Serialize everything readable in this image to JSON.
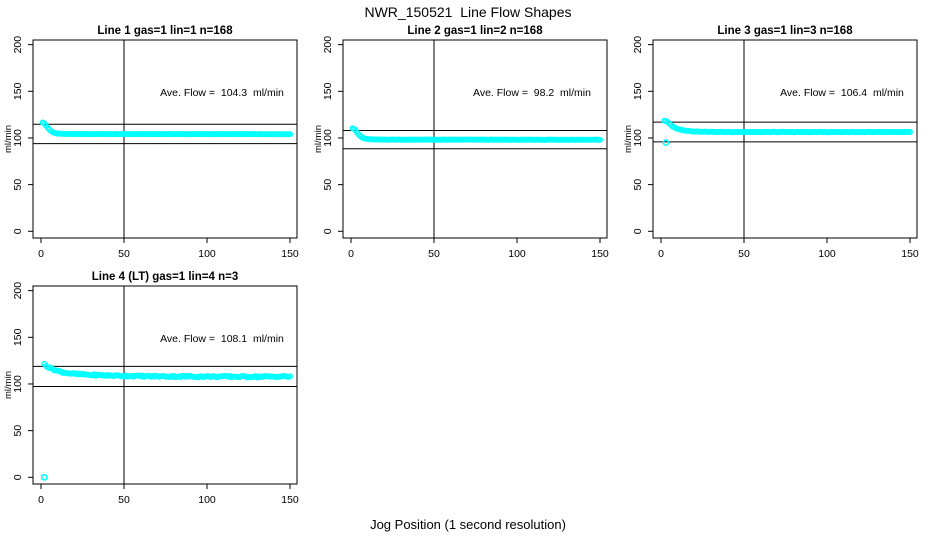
{
  "page": {
    "title": "NWR_150521  Line Flow Shapes",
    "xlabel": "Jog Position (1 second resolution)"
  },
  "chart_data": {
    "type": "scatter",
    "suptitle": "NWR_150521  Line Flow Shapes",
    "xlabel": "Jog Position (1 second resolution)",
    "ylabel": "ml/min",
    "xlim": [
      0,
      150
    ],
    "ylim": [
      0,
      200
    ],
    "xticks": [
      0,
      50,
      100,
      150
    ],
    "yticks": [
      0,
      50,
      100,
      150,
      200
    ],
    "vline_x": 50,
    "point_color": "#00ffff",
    "axis_color": "#000000",
    "grid": "off",
    "panels": [
      {
        "title": "Line 1 gas=1 lin=1 n=168",
        "gas": 1,
        "lin": 1,
        "n": 168,
        "ave_flow": 104.3,
        "ave_flow_label": "Ave. Flow =  104.3  ml/min",
        "hline_upper": 114.7,
        "hline_lower": 93.9,
        "profile": [
          [
            1,
            116.5
          ],
          [
            2,
            115.5
          ],
          [
            3,
            113.5
          ],
          [
            4,
            111.0
          ],
          [
            5,
            109.0
          ],
          [
            6,
            107.5
          ],
          [
            7,
            106.3
          ],
          [
            8,
            105.5
          ],
          [
            10,
            104.8
          ],
          [
            13,
            104.4
          ],
          [
            18,
            104.2
          ],
          [
            150,
            104.1
          ]
        ],
        "outliers": [],
        "jitter": 0.15
      },
      {
        "title": "Line 2 gas=1 lin=2 n=168",
        "gas": 1,
        "lin": 2,
        "n": 168,
        "ave_flow": 98.2,
        "ave_flow_label": "Ave. Flow =  98.2  ml/min",
        "hline_upper": 108.0,
        "hline_lower": 88.4,
        "profile": [
          [
            1,
            110.5
          ],
          [
            2,
            109.5
          ],
          [
            3,
            107.5
          ],
          [
            4,
            105.0
          ],
          [
            5,
            103.0
          ],
          [
            6,
            101.5
          ],
          [
            7,
            100.3
          ],
          [
            8,
            99.5
          ],
          [
            10,
            98.8
          ],
          [
            13,
            98.4
          ],
          [
            18,
            98.2
          ],
          [
            150,
            98.1
          ]
        ],
        "outliers": [],
        "jitter": 0.15
      },
      {
        "title": "Line 3 gas=1 lin=3 n=168",
        "gas": 1,
        "lin": 3,
        "n": 168,
        "ave_flow": 106.4,
        "ave_flow_label": "Ave. Flow =  106.4  ml/min",
        "hline_upper": 117.0,
        "hline_lower": 95.8,
        "profile": [
          [
            2,
            118.5
          ],
          [
            3,
            118.0
          ],
          [
            4,
            117.0
          ],
          [
            5,
            115.5
          ],
          [
            6,
            114.0
          ],
          [
            7,
            112.5
          ],
          [
            8,
            111.3
          ],
          [
            10,
            109.8
          ],
          [
            12,
            108.8
          ],
          [
            15,
            107.8
          ],
          [
            20,
            107.0
          ],
          [
            28,
            106.6
          ],
          [
            40,
            106.4
          ],
          [
            150,
            106.3
          ]
        ],
        "outliers": [
          [
            3,
            95
          ]
        ],
        "jitter": 0.2
      },
      {
        "title": "Line 4 (LT) gas=1 lin=4 n=3",
        "gas": 1,
        "lin": 4,
        "n": 3,
        "ave_flow": 108.1,
        "ave_flow_label": "Ave. Flow =  108.1  ml/min",
        "hline_upper": 118.9,
        "hline_lower": 97.3,
        "profile": [
          [
            2,
            121.5
          ],
          [
            3,
            120.0
          ],
          [
            4,
            118.5
          ],
          [
            5,
            117.5
          ],
          [
            7,
            116.0
          ],
          [
            9,
            114.5
          ],
          [
            12,
            113.0
          ],
          [
            15,
            112.0
          ],
          [
            18,
            111.2
          ],
          [
            22,
            110.5
          ],
          [
            27,
            110.0
          ],
          [
            32,
            109.6
          ],
          [
            38,
            109.2
          ],
          [
            45,
            108.9
          ],
          [
            52,
            108.6
          ],
          [
            60,
            108.4
          ],
          [
            70,
            108.2
          ],
          [
            80,
            108.1
          ],
          [
            90,
            108.0
          ],
          [
            100,
            107.9
          ],
          [
            110,
            107.9
          ],
          [
            120,
            107.8
          ],
          [
            130,
            107.8
          ],
          [
            140,
            107.9
          ],
          [
            150,
            108.0
          ]
        ],
        "outliers": [
          [
            2,
            0
          ]
        ],
        "jitter": 0.8
      }
    ]
  }
}
